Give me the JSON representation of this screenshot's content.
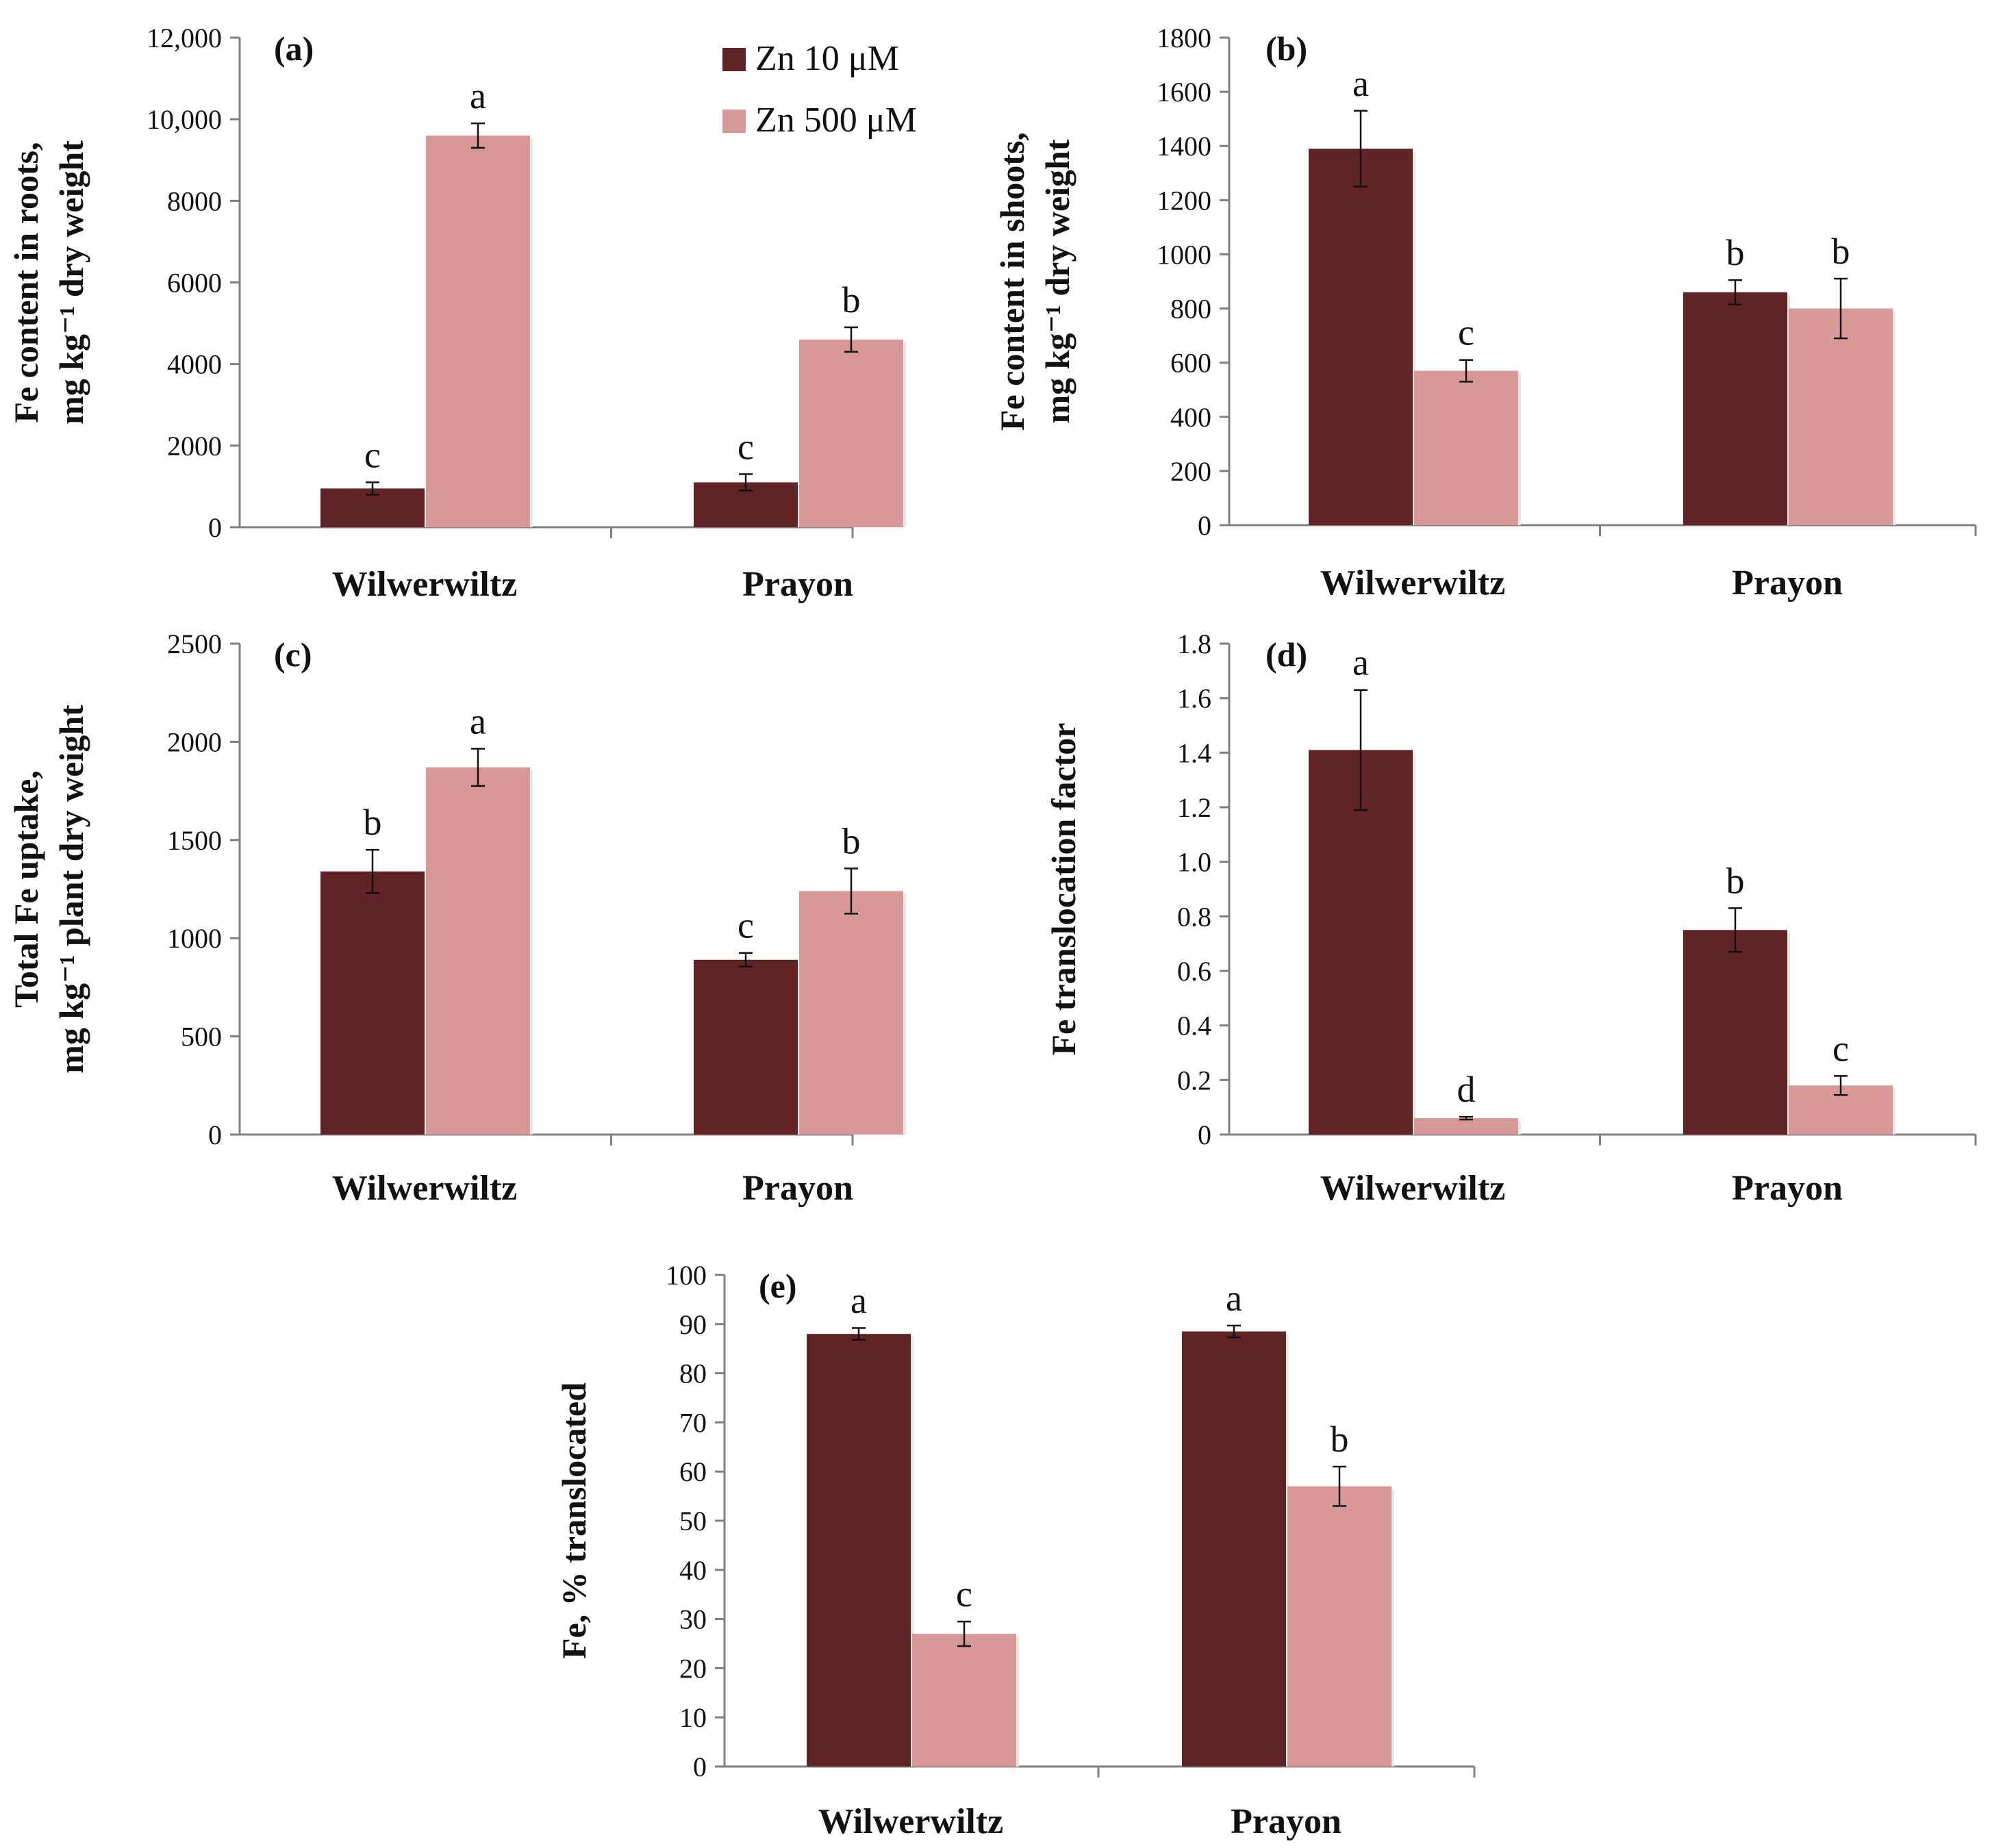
{
  "colors": {
    "series1": "#612426",
    "series2": "#d79897",
    "axis": "#808080"
  },
  "legend": [
    {
      "label": "Zn 10 μM",
      "color": "#612426"
    },
    {
      "label": "Zn 500 μM",
      "color": "#d79897"
    }
  ],
  "chart_data": [
    {
      "type": "bar",
      "panel": "(a)",
      "categories": [
        "Wilwerwiltz",
        "Prayon"
      ],
      "ylabel_lines": [
        "Fe content in roots,",
        "mg kg⁻¹ dry weight"
      ],
      "ylim": [
        0,
        12000
      ],
      "yticks": [
        0,
        2000,
        4000,
        6000,
        8000,
        10000,
        12000
      ],
      "ytick_labels": [
        "0",
        "2000",
        "4000",
        "6000",
        "8000",
        "10,000",
        "12,000"
      ],
      "series": [
        {
          "name": "Zn 10 μM",
          "values": [
            950,
            1100
          ],
          "errors": [
            150,
            200
          ],
          "letters": [
            "c",
            "c"
          ]
        },
        {
          "name": "Zn 500 μM",
          "values": [
            9600,
            4600
          ],
          "errors": [
            300,
            300
          ],
          "letters": [
            "a",
            "b"
          ]
        }
      ]
    },
    {
      "type": "bar",
      "panel": "(b)",
      "categories": [
        "Wilwerwiltz",
        "Prayon"
      ],
      "ylabel_lines": [
        "Fe content in shoots,",
        "mg kg⁻¹ dry weight"
      ],
      "ylim": [
        0,
        1800
      ],
      "yticks": [
        0,
        200,
        400,
        600,
        800,
        1000,
        1200,
        1400,
        1600,
        1800
      ],
      "ytick_labels": [
        "0",
        "200",
        "400",
        "600",
        "800",
        "1000",
        "1200",
        "1400",
        "1600",
        "1800"
      ],
      "series": [
        {
          "name": "Zn 10 μM",
          "values": [
            1390,
            860
          ],
          "errors": [
            140,
            45
          ],
          "letters": [
            "a",
            "b"
          ]
        },
        {
          "name": "Zn 500 μM",
          "values": [
            570,
            800
          ],
          "errors": [
            40,
            110
          ],
          "letters": [
            "c",
            "b"
          ]
        }
      ]
    },
    {
      "type": "bar",
      "panel": "(c)",
      "categories": [
        "Wilwerwiltz",
        "Prayon"
      ],
      "ylabel_lines": [
        "Total Fe uptake,",
        "mg kg⁻¹ plant dry weight"
      ],
      "ylim": [
        0,
        2500
      ],
      "yticks": [
        0,
        500,
        1000,
        1500,
        2000,
        2500
      ],
      "ytick_labels": [
        "0",
        "500",
        "1000",
        "1500",
        "2000",
        "2500"
      ],
      "series": [
        {
          "name": "Zn 10 μM",
          "values": [
            1340,
            890
          ],
          "errors": [
            110,
            35
          ],
          "letters": [
            "b",
            "c"
          ]
        },
        {
          "name": "Zn 500 μM",
          "values": [
            1870,
            1240
          ],
          "errors": [
            95,
            115
          ],
          "letters": [
            "a",
            "b"
          ]
        }
      ]
    },
    {
      "type": "bar",
      "panel": "(d)",
      "categories": [
        "Wilwerwiltz",
        "Prayon"
      ],
      "ylabel_lines": [
        "Fe translocation factor"
      ],
      "ylim": [
        0,
        1.8
      ],
      "yticks": [
        0,
        0.2,
        0.4,
        0.6,
        0.8,
        1.0,
        1.2,
        1.4,
        1.6,
        1.8
      ],
      "ytick_labels": [
        "0",
        "0.2",
        "0.4",
        "0.6",
        "0.8",
        "1.0",
        "1.2",
        "1.4",
        "1.6",
        "1.8"
      ],
      "series": [
        {
          "name": "Zn 10 μM",
          "values": [
            1.41,
            0.75
          ],
          "errors": [
            0.22,
            0.08
          ],
          "letters": [
            "a",
            "b"
          ]
        },
        {
          "name": "Zn 500 μM",
          "values": [
            0.06,
            0.18
          ],
          "errors": [
            0.005,
            0.035
          ],
          "letters": [
            "d",
            "c"
          ]
        }
      ]
    },
    {
      "type": "bar",
      "panel": "(e)",
      "categories": [
        "Wilwerwiltz",
        "Prayon"
      ],
      "ylabel_lines": [
        "Fe, % translocated"
      ],
      "ylim": [
        0,
        100
      ],
      "yticks": [
        0,
        10,
        20,
        30,
        40,
        50,
        60,
        70,
        80,
        90,
        100
      ],
      "ytick_labels": [
        "0",
        "10",
        "20",
        "30",
        "40",
        "50",
        "60",
        "70",
        "80",
        "90",
        "100"
      ],
      "series": [
        {
          "name": "Zn 10 μM",
          "values": [
            88,
            88.5
          ],
          "errors": [
            1.2,
            1.2
          ],
          "letters": [
            "a",
            "a"
          ]
        },
        {
          "name": "Zn 500 μM",
          "values": [
            27,
            57
          ],
          "errors": [
            2.5,
            4
          ],
          "letters": [
            "c",
            "b"
          ]
        }
      ]
    }
  ]
}
